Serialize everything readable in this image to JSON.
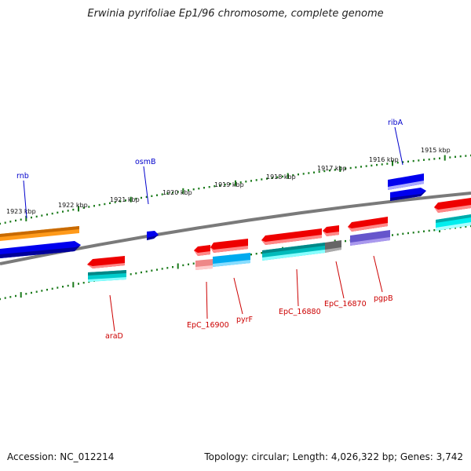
{
  "title": "Erwinia pyrifoliae Ep1/96 chromosome, complete genome",
  "footer": {
    "accession": "Accession: NC_012214",
    "summary": "Topology: circular; Length: 4,026,322 bp; Genes: 3,742"
  },
  "kbp_labels": [
    "1923 kbp",
    "1922 kbp",
    "1921 kbp",
    "1920 kbp",
    "1919 kbp",
    "1918 kbp",
    "1917 kbp",
    "1916 kbp",
    "1915 kbp"
  ],
  "gene_labels": {
    "rnb": "rnb",
    "osmB": "osmB",
    "ribA": "ribA",
    "araD": "araD",
    "EpC_16900": "EpC_16900",
    "pyrF": "pyrF",
    "EpC_16880": "EpC_16880",
    "EpC_16870": "EpC_16870",
    "pgpB": "pgpB"
  },
  "colors": {
    "forward_label": "#0000cc",
    "reverse_label": "#cc0000",
    "backbone": "#777777",
    "tick": "#1a7a1a",
    "orange": "#ff8c00",
    "blue": "#0000ee",
    "red": "#ee0000",
    "cyan": "#00cccc",
    "sky": "#00aaee",
    "gray": "#666666",
    "purple": "#6655cc"
  }
}
